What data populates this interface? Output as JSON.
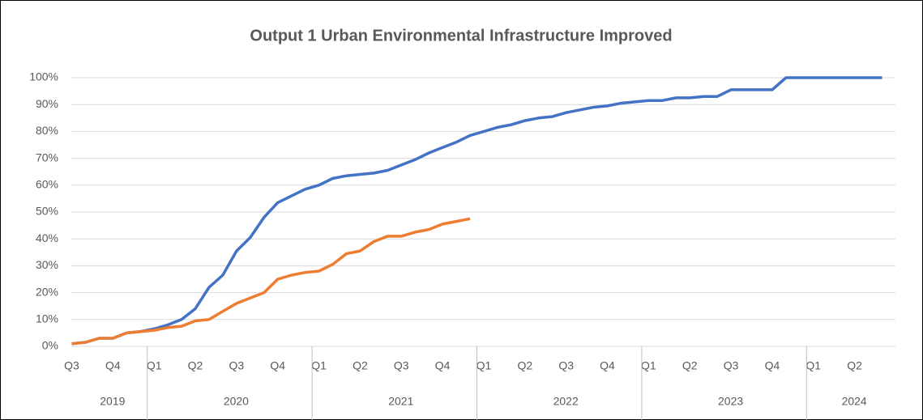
{
  "chart_data": {
    "type": "line",
    "title": "Output 1 Urban Environmental Infrastructure Improved",
    "categories": [
      "Q3",
      null,
      null,
      "Q4",
      null,
      null,
      "Q1",
      null,
      null,
      "Q2",
      null,
      null,
      "Q3",
      null,
      null,
      "Q4",
      null,
      null,
      "Q1",
      null,
      null,
      "Q2",
      null,
      null,
      "Q3",
      null,
      null,
      "Q4",
      null,
      null,
      "Q1",
      null,
      null,
      "Q2",
      null,
      null,
      "Q3",
      null,
      null,
      "Q4",
      null,
      null,
      "Q1",
      null,
      null,
      "Q2",
      null,
      null,
      "Q3",
      null,
      null,
      "Q4",
      null,
      null,
      "Q1",
      null,
      null,
      "Q2",
      null,
      null
    ],
    "years": [
      "2019",
      "2020",
      "2021",
      "2022",
      "2023",
      "2024"
    ],
    "series": [
      {
        "color": "#4472c4",
        "values": [
          1,
          1.5,
          3,
          3,
          5,
          5.5,
          6.5,
          8,
          10,
          14,
          22,
          26.5,
          35.5,
          40.5,
          48,
          53.5,
          56,
          58.5,
          60,
          62.5,
          63.5,
          64,
          64.5,
          65.5,
          67.5,
          69.5,
          72,
          74,
          76,
          78.5,
          80,
          81.5,
          82.5,
          84,
          85,
          85.5,
          87,
          88,
          89,
          89.5,
          90.5,
          91,
          91.5,
          91.5,
          92.5,
          92.5,
          93,
          93,
          95.5,
          95.5,
          95.5,
          95.5,
          100,
          100,
          100,
          100,
          100,
          100,
          100,
          100
        ]
      },
      {
        "color": "#ed7d31",
        "values": [
          1,
          1.5,
          3,
          3,
          5,
          5.5,
          6,
          7,
          7.5,
          9.5,
          10,
          13,
          16,
          18,
          20,
          25,
          26.5,
          27.5,
          28,
          30.5,
          34.5,
          35.5,
          39,
          41,
          41,
          42.5,
          43.5,
          45.5,
          46.5,
          47.5,
          null,
          null,
          null,
          null,
          null,
          null,
          null,
          null,
          null,
          null,
          null,
          null,
          null,
          null,
          null,
          null,
          null,
          null,
          null,
          null,
          null,
          null,
          null,
          null,
          null,
          null,
          null,
          null,
          null,
          null
        ]
      }
    ],
    "ylim": [
      0,
      100
    ],
    "yticks": [
      {
        "value": 0,
        "label": "0%"
      },
      {
        "value": 10,
        "label": "10%"
      },
      {
        "value": 20,
        "label": "20%"
      },
      {
        "value": 30,
        "label": "30%"
      },
      {
        "value": 40,
        "label": "40%"
      },
      {
        "value": 50,
        "label": "50%"
      },
      {
        "value": 60,
        "label": "60%"
      },
      {
        "value": 70,
        "label": "70%"
      },
      {
        "value": 80,
        "label": "80%"
      },
      {
        "value": 90,
        "label": "90%"
      },
      {
        "value": 100,
        "label": "100%"
      }
    ],
    "grid": true
  }
}
